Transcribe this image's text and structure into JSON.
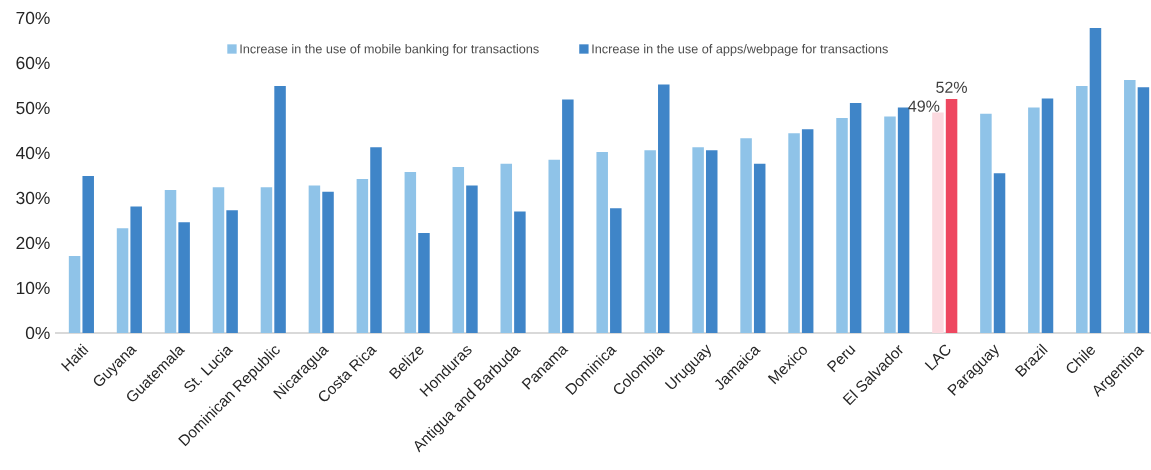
{
  "chart_data": {
    "type": "bar",
    "categories": [
      "Haiti",
      "Guyana",
      "Guatemala",
      "St. Lucia",
      "Dominican Republic",
      "Nicaragua",
      "Costa Rica",
      "Belize",
      "Honduras",
      "Antigua and Barbuda",
      "Panama",
      "Dominica",
      "Colombia",
      "Uruguay",
      "Jamaica",
      "Mexico",
      "Peru",
      "El Salvador",
      "LAC",
      "Paraguay",
      "Brazil",
      "Chile",
      "Argentina"
    ],
    "series": [
      {
        "name": "Increase in the use of mobile banking for transactions",
        "color": "#8fc3e8",
        "colors": [
          "#8fc3e8",
          "#8fc3e8",
          "#8fc3e8",
          "#8fc3e8",
          "#8fc3e8",
          "#8fc3e8",
          "#8fc3e8",
          "#8fc3e8",
          "#8fc3e8",
          "#8fc3e8",
          "#8fc3e8",
          "#8fc3e8",
          "#8fc3e8",
          "#8fc3e8",
          "#8fc3e8",
          "#8fc3e8",
          "#8fc3e8",
          "#8fc3e8",
          "#fcd9df",
          "#8fc3e8",
          "#8fc3e8",
          "#8fc3e8",
          "#8fc3e8"
        ],
        "values": [
          17.1,
          23.3,
          31.8,
          32.4,
          32.4,
          32.8,
          34.2,
          35.8,
          36.9,
          37.6,
          38.5,
          40.2,
          40.6,
          41.3,
          43.3,
          44.4,
          47.8,
          48.1,
          49,
          48.7,
          50.1,
          54.9,
          56.2
        ],
        "value_labels": [
          null,
          null,
          null,
          null,
          null,
          null,
          null,
          null,
          null,
          null,
          null,
          null,
          null,
          null,
          null,
          null,
          null,
          null,
          "49%",
          null,
          null,
          null,
          null
        ]
      },
      {
        "name": "Increase in the use of apps/webpage for transactions",
        "color": "#3f85c8",
        "colors": [
          "#3f85c8",
          "#3f85c8",
          "#3f85c8",
          "#3f85c8",
          "#3f85c8",
          "#3f85c8",
          "#3f85c8",
          "#3f85c8",
          "#3f85c8",
          "#3f85c8",
          "#3f85c8",
          "#3f85c8",
          "#3f85c8",
          "#3f85c8",
          "#3f85c8",
          "#3f85c8",
          "#3f85c8",
          "#3f85c8",
          "#ee4760",
          "#3f85c8",
          "#3f85c8",
          "#3f85c8",
          "#3f85c8"
        ],
        "values": [
          34.9,
          28.1,
          24.6,
          27.3,
          54.9,
          31.4,
          41.3,
          22.2,
          32.8,
          27.0,
          51.9,
          27.7,
          55.2,
          40.6,
          37.6,
          45.3,
          51.1,
          50.1,
          52,
          35.5,
          52.1,
          67.8,
          54.6
        ],
        "value_labels": [
          null,
          null,
          null,
          null,
          null,
          null,
          null,
          null,
          null,
          null,
          null,
          null,
          null,
          null,
          null,
          null,
          null,
          null,
          "52%",
          null,
          null,
          null,
          null
        ]
      }
    ],
    "ylim": [
      0,
      70
    ],
    "yticks": [
      {
        "value": 0,
        "label": "0%"
      },
      {
        "value": 10,
        "label": "10%"
      },
      {
        "value": 20,
        "label": "20%"
      },
      {
        "value": 30,
        "label": "30%"
      },
      {
        "value": 40,
        "label": "40%"
      },
      {
        "value": 50,
        "label": "50%"
      },
      {
        "value": 60,
        "label": "60%"
      },
      {
        "value": 70,
        "label": "70%"
      }
    ],
    "grid": false,
    "legend": "top"
  }
}
